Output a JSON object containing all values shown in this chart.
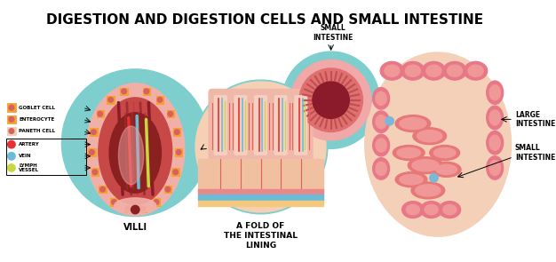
{
  "title": "DIGESTION AND DIGESTION CELLS AND SMALL INTESTINE",
  "title_fontsize": 11,
  "title_fontweight": "bold",
  "bg_color": "#ffffff",
  "label_villi": "VILLI",
  "label_fold": "A FOLD OF\nTHE INTESTINAL\nLINING",
  "label_small_intestine_top": "SMALL\nINTESTINE",
  "label_large_intestine": "LARGE\nINTESTINE",
  "label_small_intestine_right": "SMALL\nINTESTINE",
  "cyan_bg": "#7ecece",
  "pink_outer": "#f0a0a0",
  "pink_mid": "#d96060",
  "dark_red": "#8b1a2a",
  "peach_body": "#f5d0b8",
  "salmon": "#e88080",
  "artery_red": "#e83030",
  "vein_blue": "#6bbcd4",
  "lymph_green": "#c8d840",
  "cell_orange": "#f5a030",
  "cell_red": "#d96060",
  "cell_light": "#f0d0b0",
  "muscle_dark": "#b03030",
  "muscle_mid": "#c84040",
  "villi_peach": "#f5c0a0",
  "villi_inner": "#e89080",
  "intestine_pink": "#e87888",
  "intestine_dark": "#c85068",
  "large_int_peach": "#f5c8b0"
}
